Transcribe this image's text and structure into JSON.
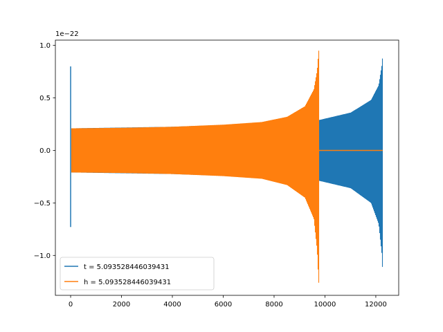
{
  "chart_data": {
    "type": "line",
    "title": "",
    "xlabel": "",
    "ylabel": "",
    "y_offset_label": "1e−22",
    "xlim": [
      -600,
      12900
    ],
    "ylim": [
      -1.38,
      1.05
    ],
    "x_ticks": [
      0,
      2000,
      4000,
      6000,
      8000,
      10000,
      12000
    ],
    "x_tick_labels": [
      "0",
      "2000",
      "4000",
      "6000",
      "8000",
      "10000",
      "12000"
    ],
    "y_ticks": [
      1.0,
      0.5,
      0.0,
      -0.5,
      -1.0
    ],
    "y_tick_labels": [
      "1.0",
      "0.5",
      "0.0",
      "−0.5",
      "−1.0"
    ],
    "grid": false,
    "legend_position": "lower-left",
    "series": [
      {
        "name": "t = 5.093528446039431",
        "color": "#1f77b4",
        "kind": "oscillation-envelope",
        "x_start": 0,
        "x_end": 12270,
        "initial_spike": {
          "x": 0,
          "max": 0.8,
          "min": -0.73
        },
        "envelope_upper": [
          [
            0,
            0.21
          ],
          [
            4000,
            0.225
          ],
          [
            8000,
            0.26
          ],
          [
            9770,
            0.29
          ],
          [
            11000,
            0.36
          ],
          [
            11800,
            0.48
          ],
          [
            12100,
            0.62
          ],
          [
            12230,
            0.82
          ],
          [
            12270,
            0.95
          ]
        ],
        "envelope_lower": [
          [
            0,
            -0.21
          ],
          [
            4000,
            -0.225
          ],
          [
            8000,
            -0.26
          ],
          [
            9770,
            -0.29
          ],
          [
            11000,
            -0.36
          ],
          [
            11800,
            -0.5
          ],
          [
            12100,
            -0.7
          ],
          [
            12230,
            -1.0
          ],
          [
            12270,
            -1.26
          ]
        ]
      },
      {
        "name": "h = 5.093528446039431",
        "color": "#ff7f0e",
        "kind": "oscillation-envelope",
        "x_start": 0,
        "x_end": 9760,
        "tail_zero_until": 12270,
        "envelope_upper": [
          [
            0,
            0.21
          ],
          [
            2000,
            0.215
          ],
          [
            4000,
            0.225
          ],
          [
            6000,
            0.245
          ],
          [
            7500,
            0.27
          ],
          [
            8500,
            0.32
          ],
          [
            9200,
            0.42
          ],
          [
            9550,
            0.58
          ],
          [
            9680,
            0.76
          ],
          [
            9740,
            0.95
          ]
        ],
        "envelope_lower": [
          [
            0,
            -0.21
          ],
          [
            2000,
            -0.215
          ],
          [
            4000,
            -0.225
          ],
          [
            6000,
            -0.245
          ],
          [
            7500,
            -0.27
          ],
          [
            8500,
            -0.33
          ],
          [
            9200,
            -0.45
          ],
          [
            9550,
            -0.65
          ],
          [
            9680,
            -0.95
          ],
          [
            9740,
            -1.26
          ]
        ]
      }
    ]
  }
}
